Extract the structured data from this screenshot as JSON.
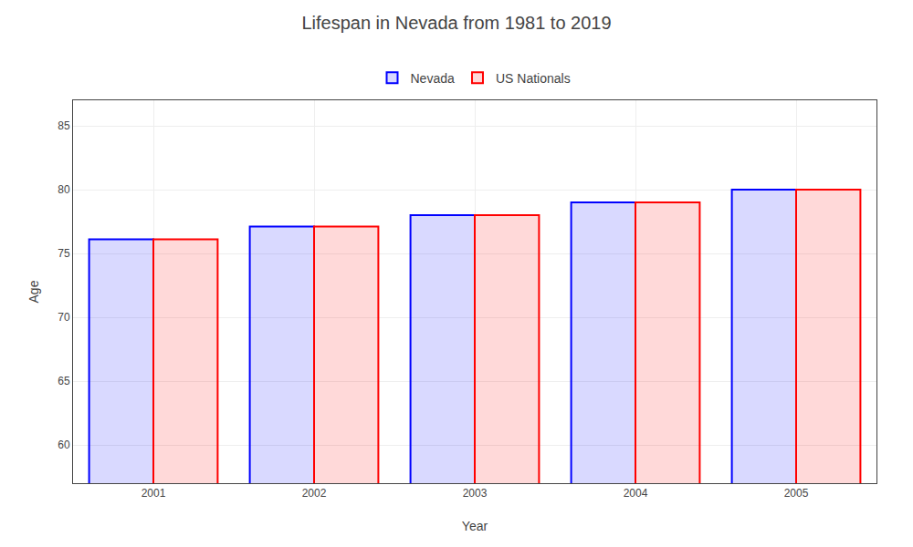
{
  "chart_data": {
    "type": "bar",
    "title": "Lifespan in Nevada from 1981 to 2019",
    "x_label": "Year",
    "y_label": "Age",
    "categories": [
      "2001",
      "2002",
      "2003",
      "2004",
      "2005"
    ],
    "series": [
      {
        "name": "Nevada",
        "color": "#0000ff",
        "values": [
          76.1,
          77.1,
          78.0,
          79.0,
          80.0
        ]
      },
      {
        "name": "US Nationals",
        "color": "#ff0000",
        "values": [
          76.1,
          77.1,
          78.0,
          79.0,
          80.0
        ]
      }
    ],
    "ylim": [
      57,
      87
    ],
    "yticks": [
      60,
      65,
      70,
      75,
      80,
      85
    ],
    "grid": true,
    "legend": "top"
  }
}
